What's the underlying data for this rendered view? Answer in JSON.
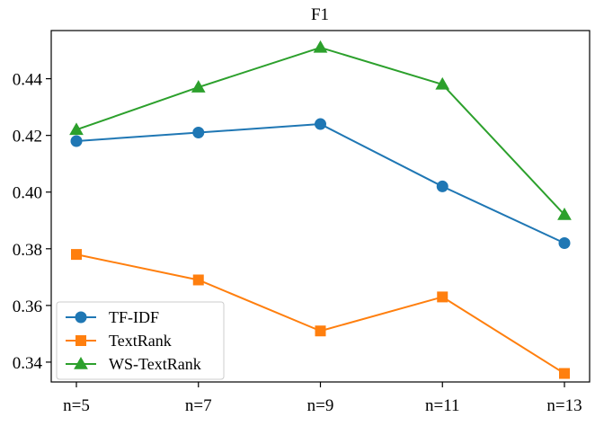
{
  "chart_data": {
    "type": "line",
    "title": "F1",
    "xlabel": "",
    "ylabel": "",
    "categories": [
      "n=5",
      "n=7",
      "n=9",
      "n=11",
      "n=13"
    ],
    "ylim": [
      0.333,
      0.457
    ],
    "yticks": [
      0.34,
      0.36,
      0.38,
      0.4,
      0.42,
      0.44
    ],
    "ytick_labels": [
      "0.34",
      "0.36",
      "0.38",
      "0.40",
      "0.42",
      "0.44"
    ],
    "grid": false,
    "legend_position": "lower-left",
    "series": [
      {
        "name": "TF-IDF",
        "color": "#1f77b4",
        "marker": "circle",
        "values": [
          0.418,
          0.421,
          0.424,
          0.402,
          0.382
        ]
      },
      {
        "name": "TextRank",
        "color": "#ff7f0e",
        "marker": "square",
        "values": [
          0.378,
          0.369,
          0.351,
          0.363,
          0.336
        ]
      },
      {
        "name": "WS-TextRank",
        "color": "#2ca02c",
        "marker": "triangle",
        "values": [
          0.422,
          0.437,
          0.451,
          0.438,
          0.392
        ]
      }
    ]
  }
}
